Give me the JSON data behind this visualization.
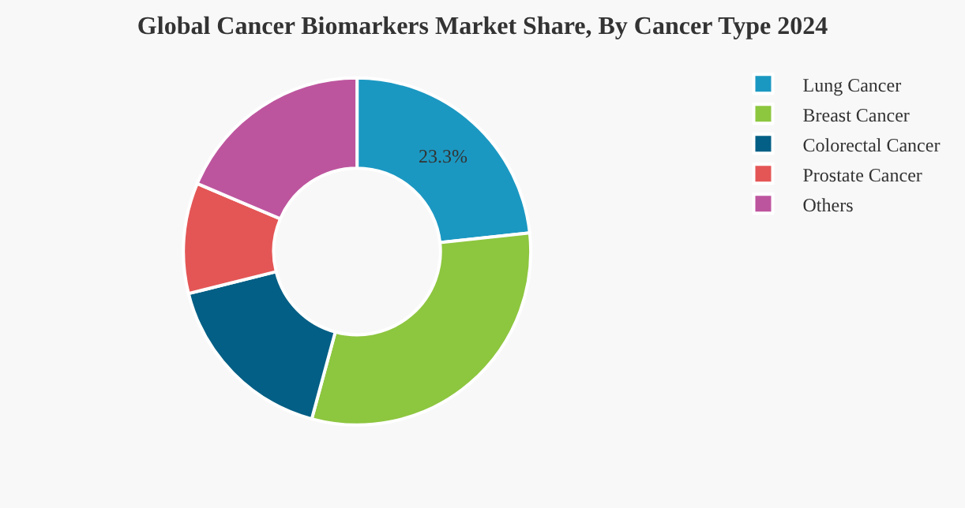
{
  "chart_data": {
    "type": "donut",
    "title": "Global Cancer Biomarkers Market Share, By Cancer Type 2024",
    "categories": [
      "Lung Cancer",
      "Breast Cancer",
      "Colorectal Cancer",
      "Prostate Cancer",
      "Others"
    ],
    "values": [
      23.3,
      30.9,
      16.9,
      10.3,
      18.6
    ],
    "colors": [
      "#1b98c2",
      "#8dc63f",
      "#035f85",
      "#e45656",
      "#bd559e"
    ],
    "value_labels": [
      "23.3%",
      null,
      null,
      null,
      null
    ],
    "legend": "top right"
  }
}
